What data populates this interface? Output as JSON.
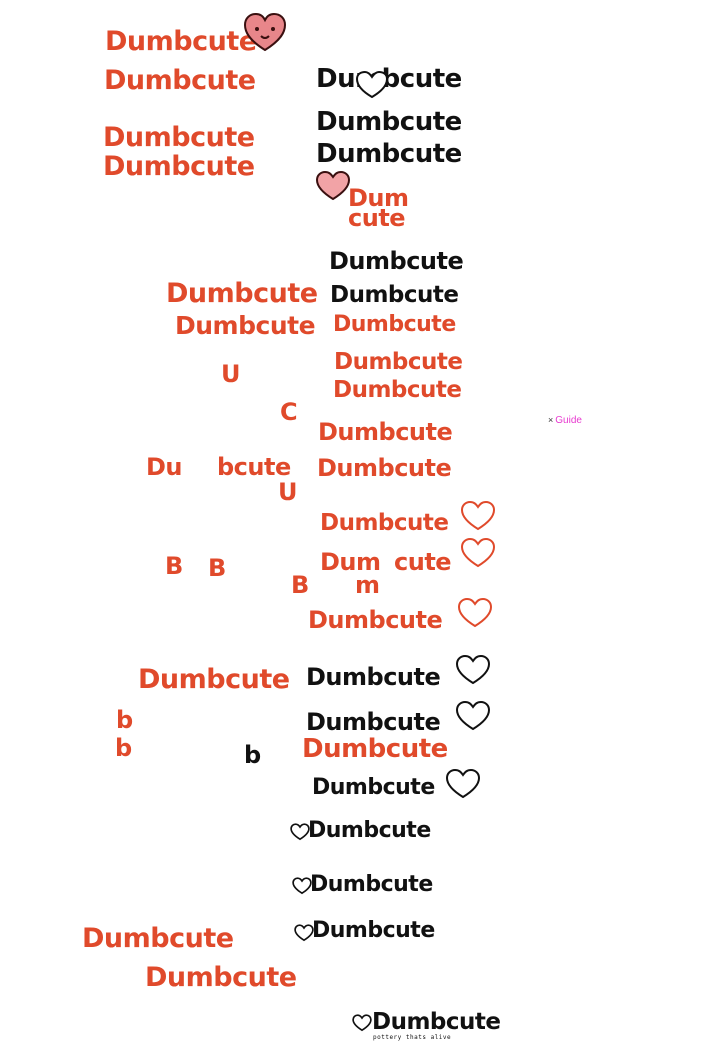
{
  "brand": {
    "name": "Dumbcute",
    "tagline": "pottery thats alive",
    "red": "#e04a2b",
    "black": "#111111",
    "pink": "#e83ad0"
  },
  "letters": {
    "du": "Du",
    "bcute": "bcute",
    "dum": "Dum",
    "cute": "cute",
    "u": "U",
    "c": "C",
    "b": "b",
    "B": "B",
    "m": "m",
    "mb": "mb",
    "c_ute": "cute"
  },
  "guide": {
    "close": "×",
    "label": "Guide"
  }
}
